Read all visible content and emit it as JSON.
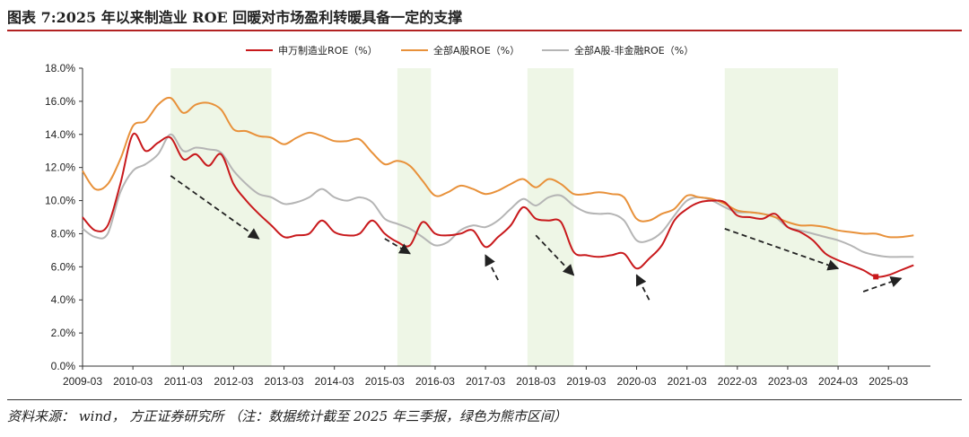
{
  "figure_title": "图表 7:2025 年以来制造业 ROE 回暖对市场盈利转暖具备一定的支撑",
  "source_note": "资料来源： wind， 方正证券研究所 （注：数据统计截至 2025 年三季报，绿色为熊市区间）",
  "colors": {
    "manufacturing": "#c8191c",
    "all_a": "#e8913a",
    "all_a_ex_fin": "#b5b5b5",
    "bear_band": "#eef6e6",
    "arrow": "#222222"
  },
  "chart_data": {
    "type": "line",
    "title": "",
    "xlabel": "",
    "ylabel": "",
    "ylim": [
      0,
      18
    ],
    "y_ticks": [
      "0.0%",
      "2.0%",
      "4.0%",
      "6.0%",
      "8.0%",
      "10.0%",
      "12.0%",
      "14.0%",
      "16.0%",
      "18.0%"
    ],
    "x_ticks": [
      "2009-03",
      "2010-03",
      "2011-03",
      "2012-03",
      "2013-03",
      "2014-03",
      "2015-03",
      "2016-03",
      "2017-03",
      "2018-03",
      "2019-03",
      "2020-03",
      "2021-03",
      "2022-03",
      "2023-03",
      "2024-03",
      "2025-03"
    ],
    "legend_position": "top-center",
    "bear_periods": [
      [
        "2010-12",
        "2012-12"
      ],
      [
        "2015-06",
        "2016-02"
      ],
      [
        "2018-01",
        "2018-12"
      ],
      [
        "2021-12",
        "2024-03"
      ]
    ],
    "series": [
      {
        "name": "申万制造业ROE（%）",
        "points": [
          [
            "2009-03",
            9.0
          ],
          [
            "2009-06",
            8.2
          ],
          [
            "2009-09",
            8.5
          ],
          [
            "2009-12",
            11.0
          ],
          [
            "2010-03",
            14.0
          ],
          [
            "2010-06",
            13.0
          ],
          [
            "2010-09",
            13.5
          ],
          [
            "2010-12",
            13.8
          ],
          [
            "2011-03",
            12.5
          ],
          [
            "2011-06",
            12.8
          ],
          [
            "2011-09",
            12.1
          ],
          [
            "2011-12",
            12.8
          ],
          [
            "2012-03",
            11.0
          ],
          [
            "2012-06",
            10.0
          ],
          [
            "2012-09",
            9.2
          ],
          [
            "2012-12",
            8.5
          ],
          [
            "2013-03",
            7.8
          ],
          [
            "2013-06",
            7.9
          ],
          [
            "2013-09",
            8.0
          ],
          [
            "2013-12",
            8.8
          ],
          [
            "2014-03",
            8.1
          ],
          [
            "2014-06",
            7.9
          ],
          [
            "2014-09",
            8.0
          ],
          [
            "2014-12",
            8.8
          ],
          [
            "2015-03",
            8.0
          ],
          [
            "2015-06",
            7.5
          ],
          [
            "2015-09",
            7.3
          ],
          [
            "2015-12",
            8.7
          ],
          [
            "2016-03",
            8.0
          ],
          [
            "2016-06",
            7.9
          ],
          [
            "2016-09",
            8.0
          ],
          [
            "2016-12",
            8.2
          ],
          [
            "2017-03",
            7.2
          ],
          [
            "2017-06",
            7.8
          ],
          [
            "2017-09",
            8.5
          ],
          [
            "2017-12",
            9.6
          ],
          [
            "2018-03",
            8.9
          ],
          [
            "2018-06",
            8.8
          ],
          [
            "2018-09",
            8.7
          ],
          [
            "2018-12",
            6.9
          ],
          [
            "2019-03",
            6.7
          ],
          [
            "2019-06",
            6.6
          ],
          [
            "2019-09",
            6.7
          ],
          [
            "2019-12",
            6.8
          ],
          [
            "2020-03",
            5.9
          ],
          [
            "2020-06",
            6.5
          ],
          [
            "2020-09",
            7.3
          ],
          [
            "2020-12",
            8.8
          ],
          [
            "2021-03",
            9.5
          ],
          [
            "2021-06",
            9.9
          ],
          [
            "2021-09",
            10.0
          ],
          [
            "2021-12",
            9.9
          ],
          [
            "2022-03",
            9.1
          ],
          [
            "2022-06",
            9.0
          ],
          [
            "2022-09",
            8.9
          ],
          [
            "2022-12",
            9.2
          ],
          [
            "2023-03",
            8.4
          ],
          [
            "2023-06",
            8.1
          ],
          [
            "2023-09",
            7.6
          ],
          [
            "2023-12",
            6.8
          ],
          [
            "2024-03",
            6.4
          ],
          [
            "2024-06",
            6.1
          ],
          [
            "2024-09",
            5.8
          ],
          [
            "2024-12",
            5.4
          ],
          [
            "2025-03",
            5.5
          ],
          [
            "2025-06",
            5.8
          ],
          [
            "2025-09",
            6.1
          ]
        ]
      },
      {
        "name": "全部A股ROE（%）",
        "points": [
          [
            "2009-03",
            11.8
          ],
          [
            "2009-06",
            10.7
          ],
          [
            "2009-09",
            11.0
          ],
          [
            "2009-12",
            12.5
          ],
          [
            "2010-03",
            14.5
          ],
          [
            "2010-06",
            14.8
          ],
          [
            "2010-09",
            15.8
          ],
          [
            "2010-12",
            16.2
          ],
          [
            "2011-03",
            15.3
          ],
          [
            "2011-06",
            15.8
          ],
          [
            "2011-09",
            15.9
          ],
          [
            "2011-12",
            15.5
          ],
          [
            "2012-03",
            14.3
          ],
          [
            "2012-06",
            14.2
          ],
          [
            "2012-09",
            13.9
          ],
          [
            "2012-12",
            13.8
          ],
          [
            "2013-03",
            13.4
          ],
          [
            "2013-06",
            13.8
          ],
          [
            "2013-09",
            14.1
          ],
          [
            "2013-12",
            13.9
          ],
          [
            "2014-03",
            13.6
          ],
          [
            "2014-06",
            13.6
          ],
          [
            "2014-09",
            13.7
          ],
          [
            "2014-12",
            12.9
          ],
          [
            "2015-03",
            12.2
          ],
          [
            "2015-06",
            12.4
          ],
          [
            "2015-09",
            12.1
          ],
          [
            "2015-12",
            11.2
          ],
          [
            "2016-03",
            10.3
          ],
          [
            "2016-06",
            10.5
          ],
          [
            "2016-09",
            10.9
          ],
          [
            "2016-12",
            10.7
          ],
          [
            "2017-03",
            10.4
          ],
          [
            "2017-06",
            10.6
          ],
          [
            "2017-09",
            11.0
          ],
          [
            "2017-12",
            11.3
          ],
          [
            "2018-03",
            10.8
          ],
          [
            "2018-06",
            11.3
          ],
          [
            "2018-09",
            11.0
          ],
          [
            "2018-12",
            10.4
          ],
          [
            "2019-03",
            10.4
          ],
          [
            "2019-06",
            10.5
          ],
          [
            "2019-09",
            10.4
          ],
          [
            "2019-12",
            10.2
          ],
          [
            "2020-03",
            8.9
          ],
          [
            "2020-06",
            8.8
          ],
          [
            "2020-09",
            9.2
          ],
          [
            "2020-12",
            9.5
          ],
          [
            "2021-03",
            10.3
          ],
          [
            "2021-06",
            10.2
          ],
          [
            "2021-09",
            10.1
          ],
          [
            "2021-12",
            9.8
          ],
          [
            "2022-03",
            9.4
          ],
          [
            "2022-06",
            9.3
          ],
          [
            "2022-09",
            9.2
          ],
          [
            "2022-12",
            9.0
          ],
          [
            "2023-03",
            8.7
          ],
          [
            "2023-06",
            8.5
          ],
          [
            "2023-09",
            8.5
          ],
          [
            "2023-12",
            8.4
          ],
          [
            "2024-03",
            8.2
          ],
          [
            "2024-06",
            8.1
          ],
          [
            "2024-09",
            8.0
          ],
          [
            "2024-12",
            8.0
          ],
          [
            "2025-03",
            7.8
          ],
          [
            "2025-06",
            7.8
          ],
          [
            "2025-09",
            7.9
          ]
        ]
      },
      {
        "name": "全部A股-非金融ROE（%）",
        "points": [
          [
            "2009-03",
            8.3
          ],
          [
            "2009-06",
            7.8
          ],
          [
            "2009-09",
            8.0
          ],
          [
            "2009-12",
            10.5
          ],
          [
            "2010-03",
            11.8
          ],
          [
            "2010-06",
            12.2
          ],
          [
            "2010-09",
            12.8
          ],
          [
            "2010-12",
            14.0
          ],
          [
            "2011-03",
            13.0
          ],
          [
            "2011-06",
            13.2
          ],
          [
            "2011-09",
            13.1
          ],
          [
            "2011-12",
            12.9
          ],
          [
            "2012-03",
            11.8
          ],
          [
            "2012-06",
            11.0
          ],
          [
            "2012-09",
            10.4
          ],
          [
            "2012-12",
            10.2
          ],
          [
            "2013-03",
            9.8
          ],
          [
            "2013-06",
            9.9
          ],
          [
            "2013-09",
            10.2
          ],
          [
            "2013-12",
            10.7
          ],
          [
            "2014-03",
            10.2
          ],
          [
            "2014-06",
            10.0
          ],
          [
            "2014-09",
            10.2
          ],
          [
            "2014-12",
            9.9
          ],
          [
            "2015-03",
            8.9
          ],
          [
            "2015-06",
            8.6
          ],
          [
            "2015-09",
            8.3
          ],
          [
            "2015-12",
            7.8
          ],
          [
            "2016-03",
            7.3
          ],
          [
            "2016-06",
            7.5
          ],
          [
            "2016-09",
            8.2
          ],
          [
            "2016-12",
            8.5
          ],
          [
            "2017-03",
            8.4
          ],
          [
            "2017-06",
            8.8
          ],
          [
            "2017-09",
            9.5
          ],
          [
            "2017-12",
            10.1
          ],
          [
            "2018-03",
            9.7
          ],
          [
            "2018-06",
            10.2
          ],
          [
            "2018-09",
            10.3
          ],
          [
            "2018-12",
            9.7
          ],
          [
            "2019-03",
            9.3
          ],
          [
            "2019-06",
            9.2
          ],
          [
            "2019-09",
            9.2
          ],
          [
            "2019-12",
            8.8
          ],
          [
            "2020-03",
            7.6
          ],
          [
            "2020-06",
            7.6
          ],
          [
            "2020-09",
            8.1
          ],
          [
            "2020-12",
            9.1
          ],
          [
            "2021-03",
            10.0
          ],
          [
            "2021-06",
            10.2
          ],
          [
            "2021-09",
            10.0
          ],
          [
            "2021-12",
            9.6
          ],
          [
            "2022-03",
            9.3
          ],
          [
            "2022-06",
            9.3
          ],
          [
            "2022-09",
            9.2
          ],
          [
            "2022-12",
            9.0
          ],
          [
            "2023-03",
            8.4
          ],
          [
            "2023-06",
            8.2
          ],
          [
            "2023-09",
            8.0
          ],
          [
            "2023-12",
            7.8
          ],
          [
            "2024-03",
            7.6
          ],
          [
            "2024-06",
            7.3
          ],
          [
            "2024-09",
            6.9
          ],
          [
            "2024-12",
            6.7
          ],
          [
            "2025-03",
            6.6
          ],
          [
            "2025-06",
            6.6
          ],
          [
            "2025-09",
            6.6
          ]
        ]
      }
    ],
    "annotations": [
      {
        "kind": "dashed-arrow",
        "direction": "down",
        "from": [
          "2010-12",
          11.5
        ],
        "to": [
          "2012-09",
          7.7
        ]
      },
      {
        "kind": "dashed-arrow",
        "direction": "down",
        "from": [
          "2015-03",
          7.7
        ],
        "to": [
          "2015-09",
          6.8
        ]
      },
      {
        "kind": "dashed-arrow",
        "direction": "up",
        "from": [
          "2017-06",
          5.2
        ],
        "to": [
          "2017-03",
          6.7
        ]
      },
      {
        "kind": "dashed-arrow",
        "direction": "down",
        "from": [
          "2018-03",
          7.9
        ],
        "to": [
          "2018-12",
          5.5
        ]
      },
      {
        "kind": "dashed-arrow",
        "direction": "up",
        "from": [
          "2020-06",
          4.0
        ],
        "to": [
          "2020-03",
          5.5
        ]
      },
      {
        "kind": "dashed-arrow",
        "direction": "down",
        "from": [
          "2021-12",
          8.3
        ],
        "to": [
          "2024-03",
          5.9
        ]
      },
      {
        "kind": "dashed-arrow",
        "direction": "up",
        "from": [
          "2024-09",
          4.5
        ],
        "to": [
          "2025-06",
          5.3
        ]
      }
    ]
  }
}
